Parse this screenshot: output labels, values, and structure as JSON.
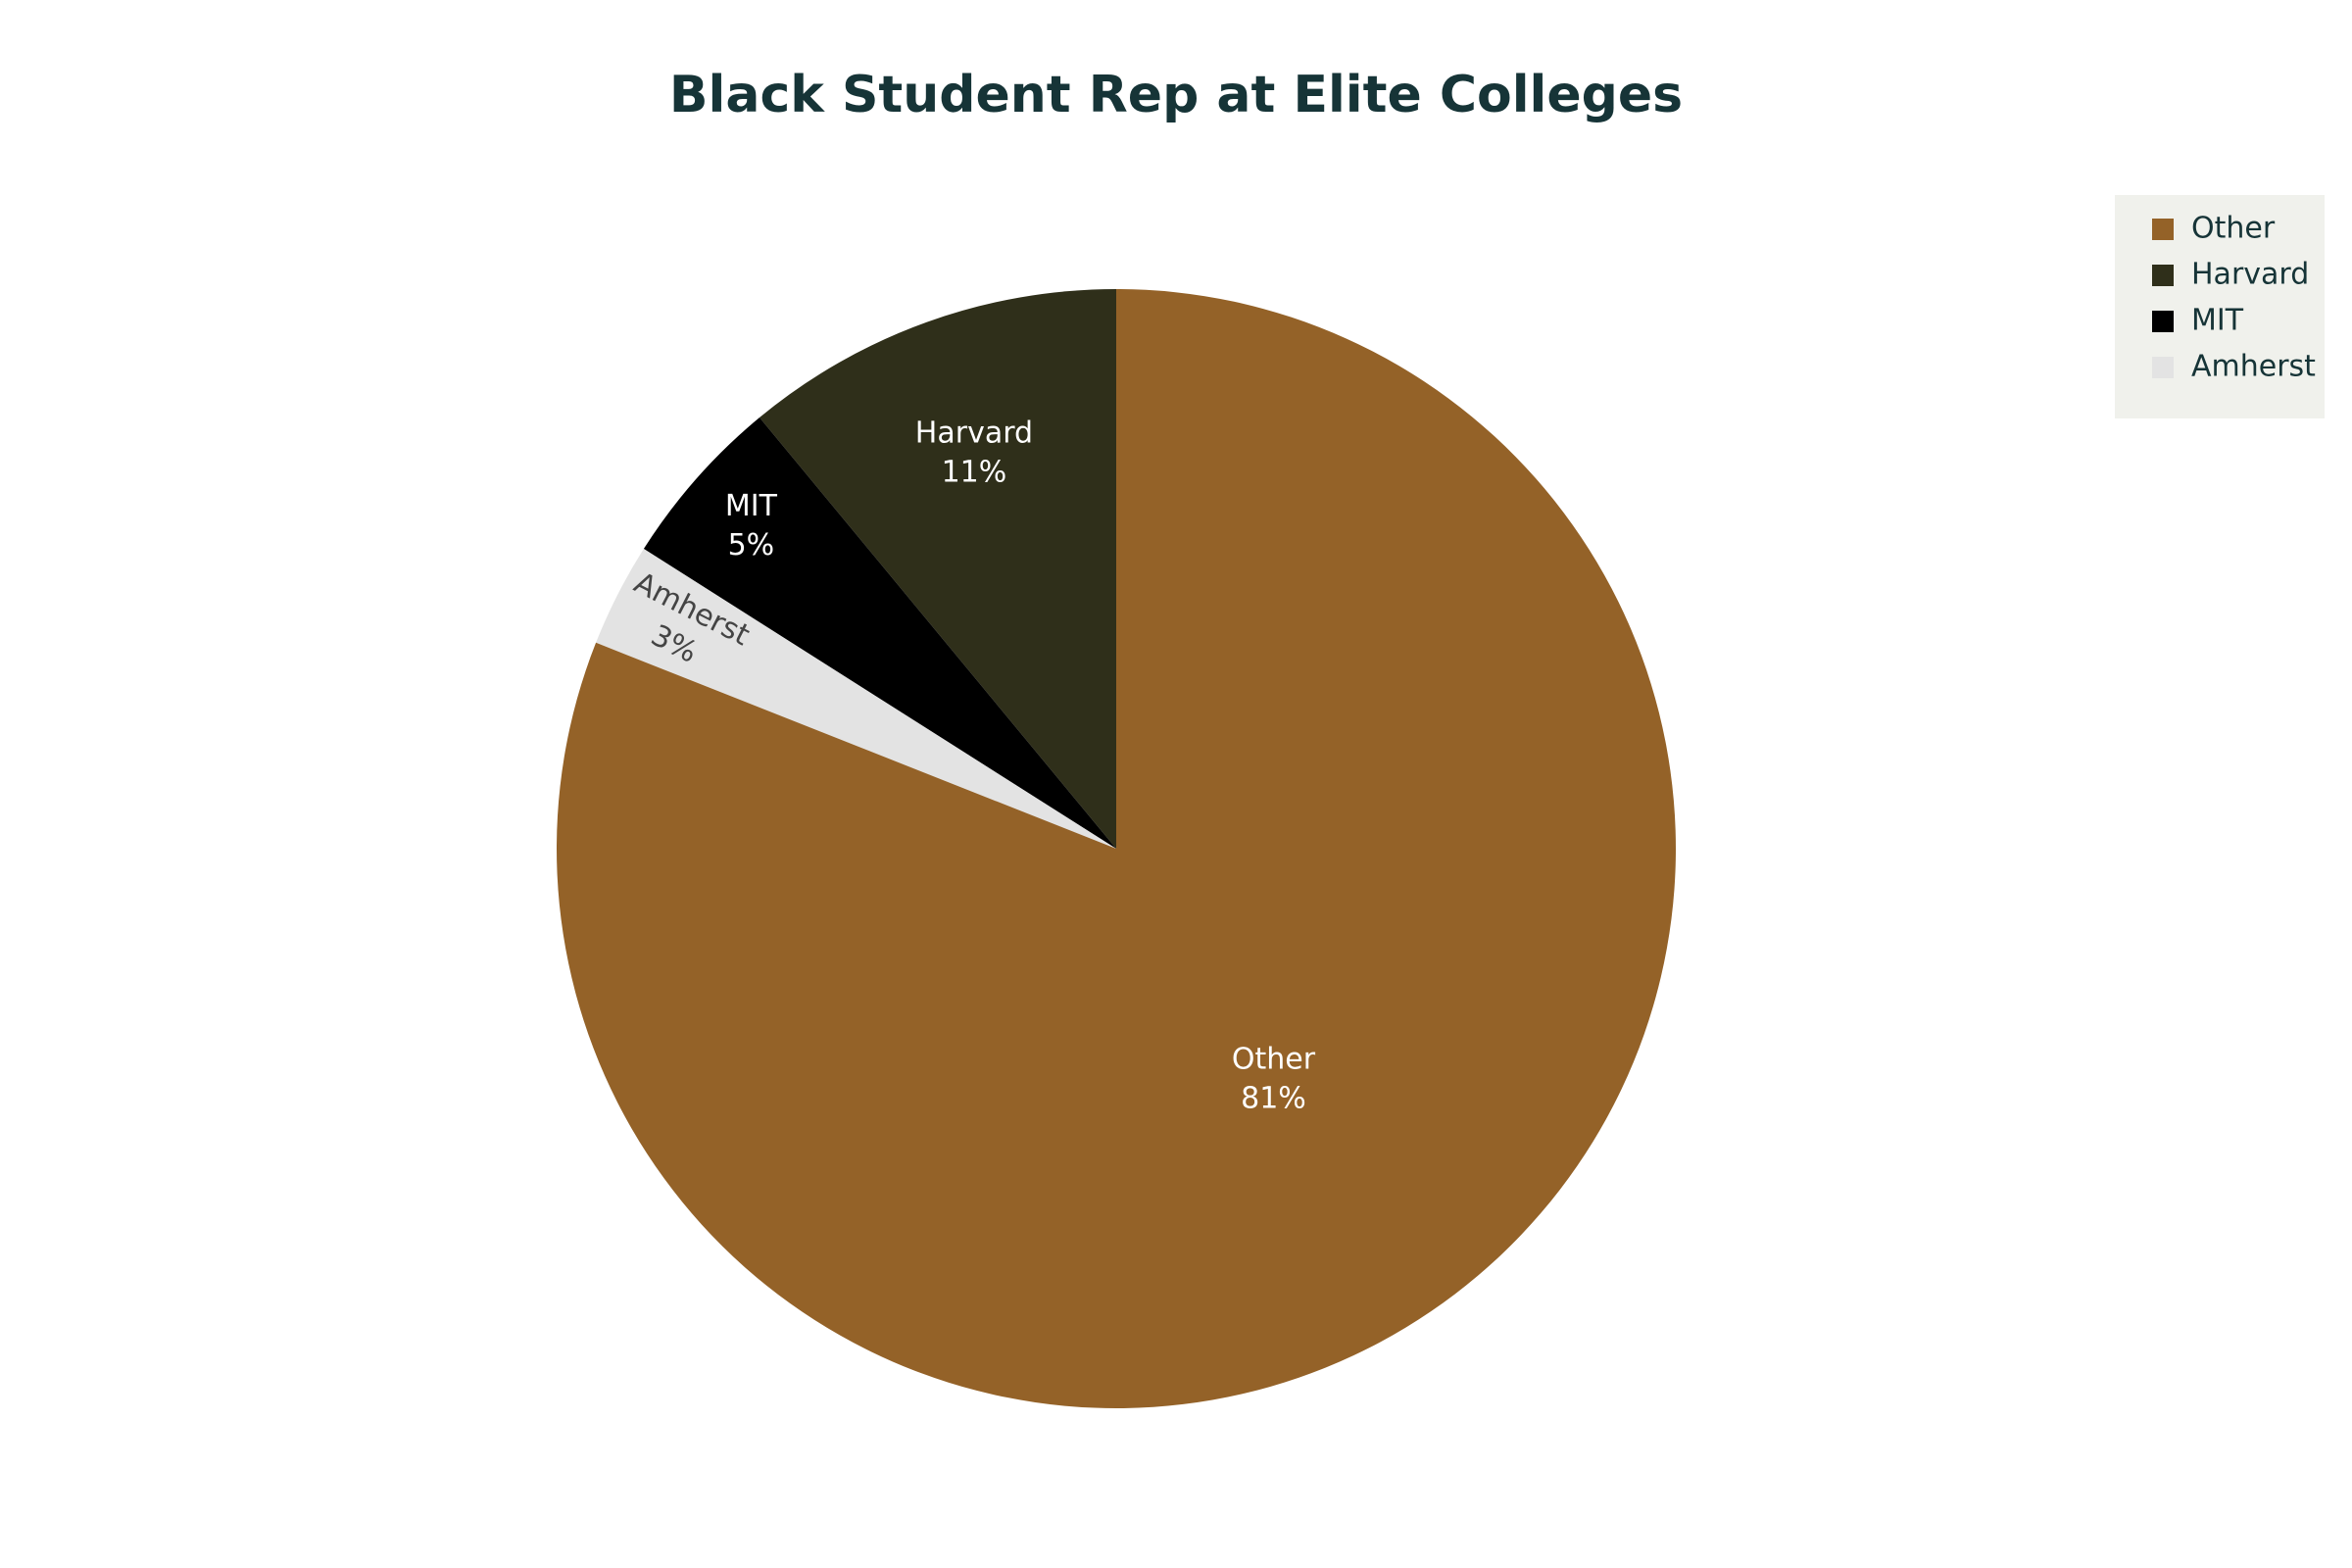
{
  "chart_data": {
    "type": "pie",
    "title": "Black Student Rep at Elite Colleges",
    "categories": [
      "Other",
      "Harvard",
      "MIT",
      "Amherst"
    ],
    "values": [
      81,
      11,
      5,
      3
    ],
    "value_labels": [
      "81%",
      "11%",
      "5%",
      "3%"
    ],
    "colors": [
      "#946228",
      "#2f2f1a",
      "#000000",
      "#e3e3e3"
    ],
    "legend": "top-right"
  }
}
